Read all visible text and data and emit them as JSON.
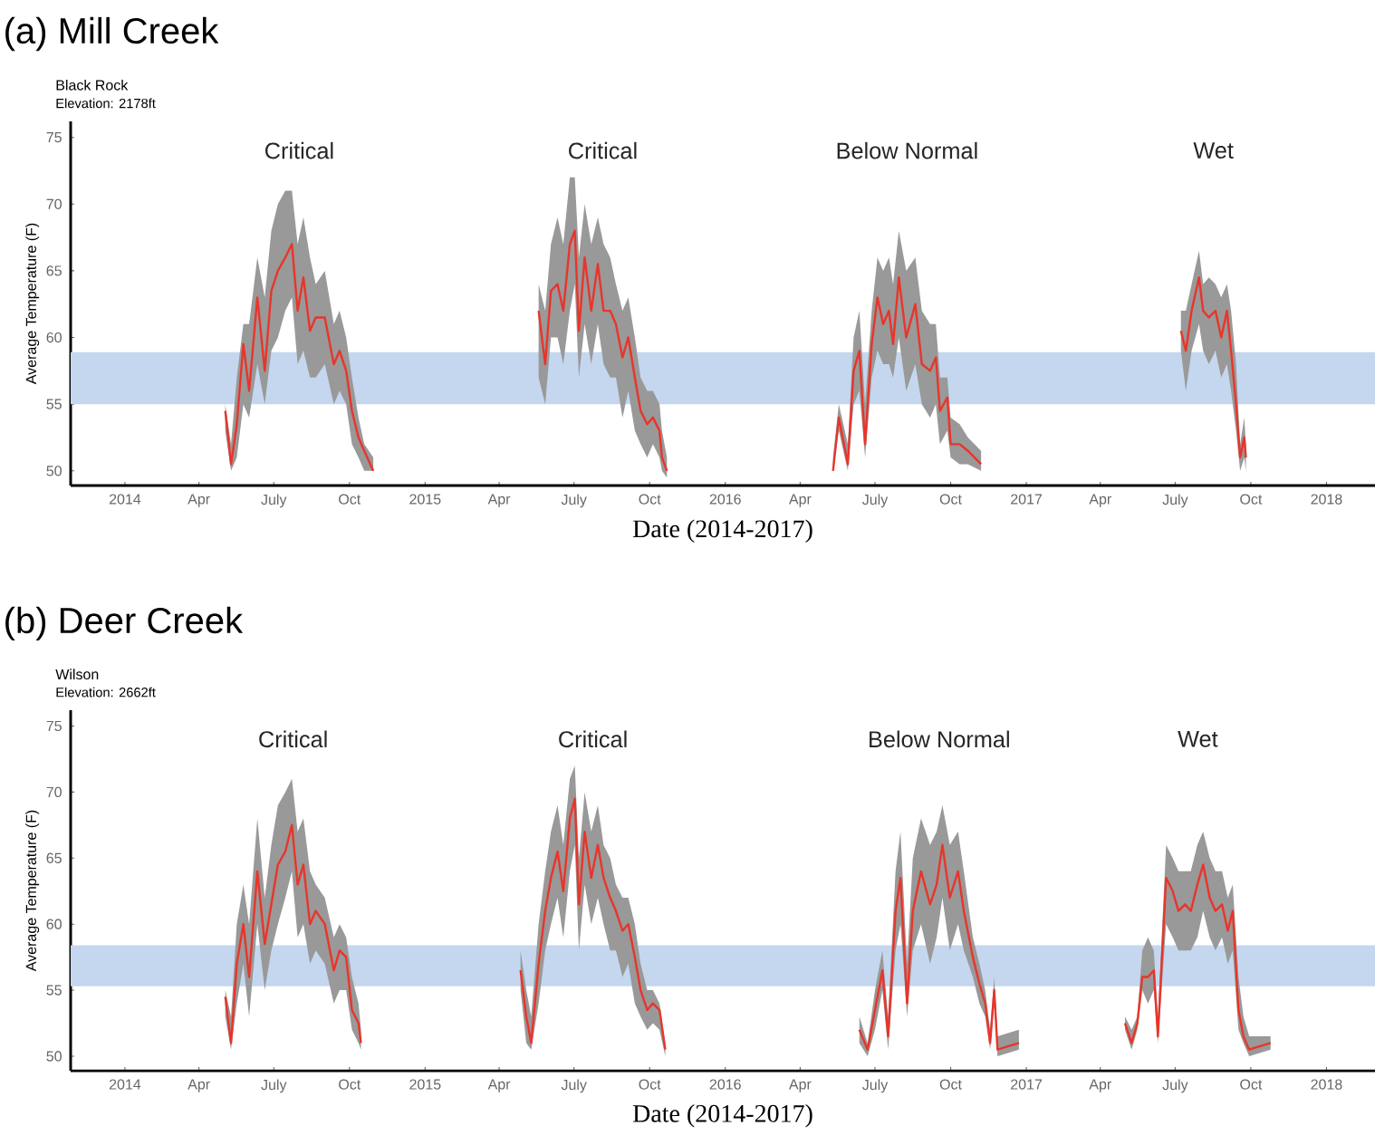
{
  "chart_data": [
    {
      "type": "line",
      "title": "(a) Mill Creek",
      "subtitle": "Black Rock",
      "xlabel": "Date (2014-2017)",
      "ylabel": "Average Temperature (F)",
      "annotations": [
        "Elevation: 2178ft",
        "Critical",
        "Critical",
        "Below Normal",
        "Wet"
      ],
      "xlim": [
        "2013-10-27",
        "2018-03-01"
      ],
      "xticks": [
        {
          "value": "2014-01-01",
          "label": "2014"
        },
        {
          "value": "2014-04-01",
          "label": "Apr"
        },
        {
          "value": "2014-07-01",
          "label": "July"
        },
        {
          "value": "2014-10-01",
          "label": "Oct"
        },
        {
          "value": "2015-01-01",
          "label": "2015"
        },
        {
          "value": "2015-04-01",
          "label": "Apr"
        },
        {
          "value": "2015-07-01",
          "label": "July"
        },
        {
          "value": "2015-10-01",
          "label": "Oct"
        },
        {
          "value": "2016-01-01",
          "label": "2016"
        },
        {
          "value": "2016-04-01",
          "label": "Apr"
        },
        {
          "value": "2016-07-01",
          "label": "July"
        },
        {
          "value": "2016-10-01",
          "label": "Oct"
        },
        {
          "value": "2017-01-01",
          "label": "2017"
        },
        {
          "value": "2017-04-01",
          "label": "Apr"
        },
        {
          "value": "2017-07-01",
          "label": "July"
        },
        {
          "value": "2017-10-01",
          "label": "Oct"
        },
        {
          "value": "2018-01-01",
          "label": "2018"
        }
      ],
      "ylim": [
        48.9,
        76.2
      ],
      "yticks": [
        50,
        55,
        60,
        65,
        70,
        75
      ],
      "bands": [
        {
          "axis": "y",
          "from": 55,
          "to": 58.9,
          "color": "#c5d7ee"
        }
      ],
      "series": [
        {
          "color": "#e8352b",
          "x": [
            "2014-05-03",
            "2014-05-10",
            "2014-05-17",
            "2014-05-25",
            "2014-06-01",
            "2014-06-11",
            "2014-06-20",
            "2014-06-28",
            "2014-07-06",
            "2014-07-15",
            "2014-07-23",
            "2014-07-30",
            "2014-08-06",
            "2014-08-14",
            "2014-08-21",
            "2014-09-01",
            "2014-09-12",
            "2014-09-19",
            "2014-09-27",
            "2014-10-04",
            "2014-10-12",
            "2014-10-19",
            "2014-10-30"
          ],
          "values": [
            54.5,
            50.5,
            53.5,
            59.5,
            56,
            63,
            57.5,
            63.5,
            65,
            66,
            67,
            62,
            64.5,
            60.5,
            61.5,
            61.5,
            58,
            59,
            57.5,
            54.5,
            52.5,
            51.5,
            50
          ],
          "upper": [
            55,
            52,
            57,
            61,
            61,
            66,
            63,
            68,
            70,
            71,
            71,
            67,
            69,
            66,
            64,
            65,
            61,
            62,
            60,
            57,
            54,
            52,
            51
          ],
          "lower": [
            53,
            50,
            51,
            55,
            54,
            58,
            55,
            59,
            60,
            62,
            63,
            58,
            59,
            57,
            57,
            58,
            55,
            56,
            55,
            52,
            51,
            50,
            50
          ]
        },
        {
          "color": "#e8352b",
          "x": [
            "2015-05-19",
            "2015-05-27",
            "2015-06-03",
            "2015-06-11",
            "2015-06-18",
            "2015-06-26",
            "2015-07-02",
            "2015-07-07",
            "2015-07-14",
            "2015-07-22",
            "2015-07-30",
            "2015-08-06",
            "2015-08-14",
            "2015-08-21",
            "2015-08-29",
            "2015-09-05",
            "2015-09-13",
            "2015-09-20",
            "2015-09-28",
            "2015-10-05",
            "2015-10-13",
            "2015-10-16",
            "2015-10-22"
          ],
          "values": [
            62,
            58,
            63.5,
            64,
            62,
            67,
            68,
            60.5,
            66,
            62,
            65.5,
            62,
            62,
            61,
            58.5,
            60,
            57,
            54.5,
            53.5,
            54,
            53,
            51,
            50
          ],
          "upper": [
            64,
            62,
            67,
            69,
            67,
            72,
            72,
            66,
            70,
            67,
            69,
            67,
            66,
            64,
            62,
            63,
            60,
            57,
            56,
            56,
            55,
            53,
            51
          ],
          "lower": [
            57,
            55,
            60,
            60,
            58,
            62,
            64,
            57,
            61,
            58,
            61,
            58,
            57,
            57,
            54,
            56,
            53,
            52,
            51,
            52,
            51,
            50,
            49.5
          ]
        },
        {
          "color": "#e8352b",
          "x": [
            "2016-05-11",
            "2016-05-18",
            "2016-05-29",
            "2016-06-05",
            "2016-06-12",
            "2016-06-19",
            "2016-06-27",
            "2016-07-04",
            "2016-07-11",
            "2016-07-18",
            "2016-07-23",
            "2016-07-30",
            "2016-08-08",
            "2016-08-19",
            "2016-08-27",
            "2016-09-06",
            "2016-09-13",
            "2016-09-18",
            "2016-09-27",
            "2016-10-01",
            "2016-10-12",
            "2016-10-22",
            "2016-11-07"
          ],
          "values": [
            50,
            54,
            50.5,
            57.5,
            59,
            52,
            59.5,
            63,
            61,
            62,
            59.5,
            64.5,
            60,
            62.5,
            58,
            57.5,
            58.5,
            54.5,
            55.5,
            52,
            52,
            51.5,
            50.5
          ],
          "upper": [
            51,
            55,
            52,
            60,
            62,
            55,
            62,
            66,
            65,
            66,
            64,
            68,
            65,
            66,
            62,
            61,
            61,
            57,
            57,
            54,
            53.5,
            52.5,
            51.5
          ],
          "lower": [
            50,
            53,
            50,
            55,
            56,
            51,
            57,
            59,
            58,
            58,
            57,
            60,
            56,
            58,
            55,
            54,
            55,
            52,
            53,
            51,
            50.5,
            50.5,
            50
          ]
        },
        {
          "color": "#e8352b",
          "x": [
            "2017-07-08",
            "2017-07-14",
            "2017-07-21",
            "2017-07-30",
            "2017-08-04",
            "2017-08-11",
            "2017-08-19",
            "2017-08-26",
            "2017-09-02",
            "2017-09-07",
            "2017-09-13",
            "2017-09-18",
            "2017-09-23",
            "2017-09-25"
          ],
          "values": [
            60.5,
            59,
            62,
            64.5,
            62,
            61.5,
            62,
            60,
            62,
            59,
            55,
            51,
            52.5,
            51
          ],
          "upper": [
            62,
            62,
            64,
            66.5,
            64,
            64.5,
            64,
            63,
            64,
            62,
            58,
            52,
            54,
            52
          ],
          "lower": [
            59,
            56,
            59,
            61,
            59,
            58,
            59,
            57,
            58,
            56,
            53,
            50,
            51,
            50
          ]
        }
      ]
    },
    {
      "type": "line",
      "title": "(b) Deer Creek",
      "subtitle": "Wilson",
      "xlabel": "Date (2014-2017)",
      "ylabel": "Average Temperature (F)",
      "annotations": [
        "Elevation: 2662ft",
        "Critical",
        "Critical",
        "Below Normal",
        "Wet"
      ],
      "xlim": [
        "2013-10-27",
        "2018-03-01"
      ],
      "xticks": [
        {
          "value": "2014-01-01",
          "label": "2014"
        },
        {
          "value": "2014-04-01",
          "label": "Apr"
        },
        {
          "value": "2014-07-01",
          "label": "July"
        },
        {
          "value": "2014-10-01",
          "label": "Oct"
        },
        {
          "value": "2015-01-01",
          "label": "2015"
        },
        {
          "value": "2015-04-01",
          "label": "Apr"
        },
        {
          "value": "2015-07-01",
          "label": "July"
        },
        {
          "value": "2015-10-01",
          "label": "Oct"
        },
        {
          "value": "2016-01-01",
          "label": "2016"
        },
        {
          "value": "2016-04-01",
          "label": "Apr"
        },
        {
          "value": "2016-07-01",
          "label": "July"
        },
        {
          "value": "2016-10-01",
          "label": "Oct"
        },
        {
          "value": "2017-01-01",
          "label": "2017"
        },
        {
          "value": "2017-04-01",
          "label": "Apr"
        },
        {
          "value": "2017-07-01",
          "label": "July"
        },
        {
          "value": "2017-10-01",
          "label": "Oct"
        },
        {
          "value": "2018-01-01",
          "label": "2018"
        }
      ],
      "ylim": [
        48.9,
        76.2
      ],
      "yticks": [
        50,
        55,
        60,
        65,
        70,
        75
      ],
      "bands": [
        {
          "axis": "y",
          "from": 55.3,
          "to": 58.4,
          "color": "#c5d7ee"
        }
      ],
      "series": [
        {
          "color": "#e8352b",
          "x": [
            "2014-05-03",
            "2014-05-10",
            "2014-05-17",
            "2014-05-25",
            "2014-06-01",
            "2014-06-11",
            "2014-06-20",
            "2014-06-28",
            "2014-07-06",
            "2014-07-15",
            "2014-07-23",
            "2014-07-30",
            "2014-08-06",
            "2014-08-14",
            "2014-08-21",
            "2014-09-01",
            "2014-09-12",
            "2014-09-19",
            "2014-09-27",
            "2014-10-04",
            "2014-10-12",
            "2014-10-15"
          ],
          "values": [
            54.5,
            51,
            57,
            60,
            56,
            64,
            58.5,
            61.5,
            64.5,
            65.5,
            67.5,
            63,
            64.5,
            60,
            61,
            60,
            56.5,
            58,
            57.5,
            53.5,
            52.5,
            51
          ],
          "upper": [
            55,
            53,
            60,
            63,
            60,
            68,
            62,
            66,
            69,
            70,
            71,
            67,
            68,
            64,
            63,
            62,
            59,
            60,
            59,
            56,
            54,
            52
          ],
          "lower": [
            53,
            50.5,
            54,
            57,
            53,
            60,
            55,
            58,
            60,
            62,
            64,
            59,
            60,
            57,
            58,
            57,
            54,
            55,
            55,
            52,
            51,
            50.5
          ]
        },
        {
          "color": "#e8352b",
          "x": [
            "2015-04-27",
            "2015-05-04",
            "2015-05-10",
            "2015-05-19",
            "2015-05-27",
            "2015-06-03",
            "2015-06-11",
            "2015-06-18",
            "2015-06-26",
            "2015-07-02",
            "2015-07-07",
            "2015-07-14",
            "2015-07-22",
            "2015-07-30",
            "2015-08-06",
            "2015-08-14",
            "2015-08-21",
            "2015-08-29",
            "2015-09-05",
            "2015-09-13",
            "2015-09-20",
            "2015-09-28",
            "2015-10-05",
            "2015-10-13",
            "2015-10-20"
          ],
          "values": [
            56.5,
            53,
            51,
            57,
            61,
            63.5,
            65.5,
            62.5,
            68,
            69.5,
            61.5,
            67,
            63.5,
            66,
            63.5,
            62,
            61,
            59.5,
            60,
            57.5,
            55,
            53.5,
            54,
            53.5,
            50.5
          ],
          "upper": [
            58,
            55,
            53,
            60,
            64,
            67,
            69,
            66,
            71,
            72,
            65,
            70,
            67,
            69,
            66,
            65,
            63,
            62,
            62,
            60,
            57,
            55,
            55,
            54,
            51
          ],
          "lower": [
            55,
            51,
            50.5,
            54,
            58,
            60,
            62,
            59,
            64,
            66,
            58,
            63,
            60,
            62,
            60,
            58,
            58,
            56,
            57,
            54,
            53,
            52,
            52.5,
            52,
            50
          ]
        },
        {
          "color": "#e8352b",
          "x": [
            "2016-06-12",
            "2016-06-22",
            "2016-07-01",
            "2016-07-10",
            "2016-07-17",
            "2016-07-26",
            "2016-08-01",
            "2016-08-09",
            "2016-08-16",
            "2016-08-26",
            "2016-09-06",
            "2016-09-14",
            "2016-09-21",
            "2016-09-30",
            "2016-10-10",
            "2016-10-17",
            "2016-10-28",
            "2016-11-05",
            "2016-11-12",
            "2016-11-18",
            "2016-11-23",
            "2016-11-27",
            "2016-12-23"
          ],
          "values": [
            52,
            50.5,
            53.5,
            56.5,
            51.5,
            61,
            63.5,
            54,
            61,
            64,
            61.5,
            63,
            66,
            62,
            64,
            61,
            57.5,
            55.5,
            54,
            51,
            55,
            50.5,
            51
          ],
          "upper": [
            53,
            51,
            55,
            58,
            53,
            64,
            67,
            57,
            65,
            68,
            66,
            67,
            69,
            66,
            67,
            64,
            59,
            57,
            55,
            52,
            56,
            51.5,
            52
          ],
          "lower": [
            51,
            50,
            52,
            55,
            50.5,
            58,
            60,
            53,
            58,
            60,
            57,
            59,
            62,
            58,
            60,
            58,
            56,
            54,
            53,
            50.5,
            54,
            50,
            50.5
          ]
        },
        {
          "color": "#e8352b",
          "x": [
            "2017-05-01",
            "2017-05-09",
            "2017-05-16",
            "2017-05-22",
            "2017-05-29",
            "2017-06-05",
            "2017-06-10",
            "2017-06-20",
            "2017-06-28",
            "2017-07-05",
            "2017-07-13",
            "2017-07-20",
            "2017-07-28",
            "2017-08-04",
            "2017-08-12",
            "2017-08-19",
            "2017-08-27",
            "2017-09-03",
            "2017-09-09",
            "2017-09-16",
            "2017-09-22",
            "2017-09-29",
            "2017-10-25"
          ],
          "values": [
            52.5,
            51,
            52.5,
            56,
            56,
            56.5,
            51.5,
            63.5,
            62.5,
            61,
            61.5,
            61,
            63,
            64.5,
            62,
            61,
            61.5,
            59.5,
            61,
            53.5,
            51.5,
            50.5,
            51
          ],
          "upper": [
            53,
            52,
            53,
            58,
            59,
            58,
            53,
            66,
            65,
            64,
            64,
            64,
            66,
            67,
            65,
            64,
            64,
            62,
            63,
            56,
            53,
            51.5,
            51.5
          ],
          "lower": [
            52,
            50.5,
            52,
            55,
            54,
            55,
            51,
            60,
            59,
            58,
            58,
            58,
            59,
            61,
            59,
            58,
            59,
            57,
            58,
            52,
            51,
            50,
            50.5
          ]
        }
      ]
    }
  ]
}
